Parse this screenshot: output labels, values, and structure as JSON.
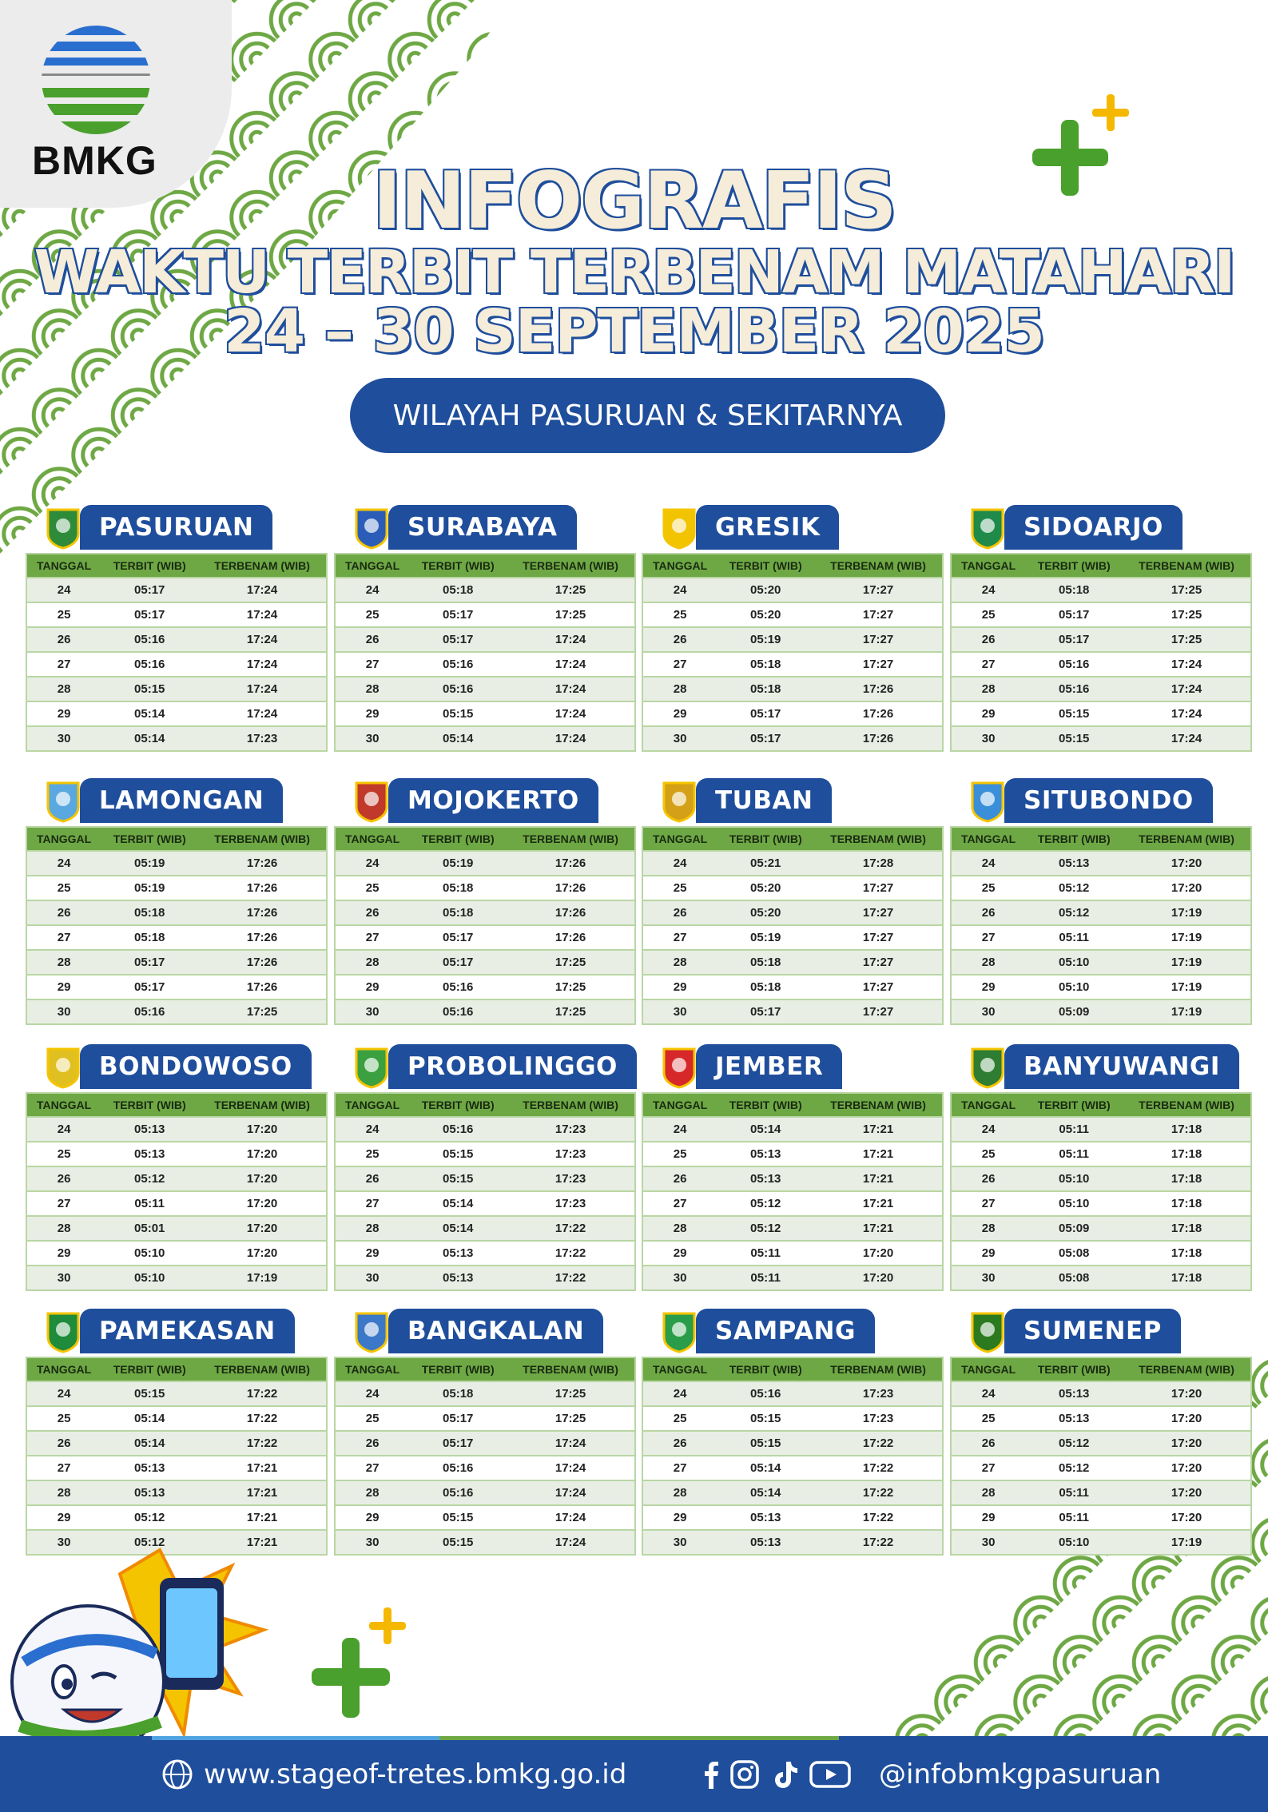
{
  "brand": {
    "logo_text": "BMKG"
  },
  "header": {
    "title_line1": "INFOGRAFIS",
    "title_line2": "WAKTU TERBIT TERBENAM MATAHARI",
    "title_line3": "24 – 30 SEPTEMBER 2025",
    "region_pill": "WILAYAH PASURUAN & SEKITARNYA"
  },
  "colors": {
    "primary_blue": "#1f4e9c",
    "green": "#6ea844",
    "accent_yellow": "#f5b800",
    "title_fill": "#f5edd9"
  },
  "table_headers": [
    "TANGGAL",
    "TERBIT (WIB)",
    "TERBENAM (WIB)"
  ],
  "dates": [
    "24",
    "25",
    "26",
    "27",
    "28",
    "29",
    "30"
  ],
  "regions": [
    {
      "name": "PASURUAN",
      "sunrise": [
        "05:17",
        "05:17",
        "05:16",
        "05:16",
        "05:15",
        "05:14",
        "05:14"
      ],
      "sunset": [
        "17:24",
        "17:24",
        "17:24",
        "17:24",
        "17:24",
        "17:24",
        "17:23"
      ]
    },
    {
      "name": "SURABAYA",
      "sunrise": [
        "05:18",
        "05:17",
        "05:17",
        "05:16",
        "05:16",
        "05:15",
        "05:14"
      ],
      "sunset": [
        "17:25",
        "17:25",
        "17:24",
        "17:24",
        "17:24",
        "17:24",
        "17:24"
      ]
    },
    {
      "name": "GRESIK",
      "sunrise": [
        "05:20",
        "05:20",
        "05:19",
        "05:18",
        "05:18",
        "05:17",
        "05:17"
      ],
      "sunset": [
        "17:27",
        "17:27",
        "17:27",
        "17:27",
        "17:26",
        "17:26",
        "17:26"
      ]
    },
    {
      "name": "SIDOARJO",
      "sunrise": [
        "05:18",
        "05:17",
        "05:17",
        "05:16",
        "05:16",
        "05:15",
        "05:15"
      ],
      "sunset": [
        "17:25",
        "17:25",
        "17:25",
        "17:24",
        "17:24",
        "17:24",
        "17:24"
      ]
    },
    {
      "name": "LAMONGAN",
      "sunrise": [
        "05:19",
        "05:19",
        "05:18",
        "05:18",
        "05:17",
        "05:17",
        "05:16"
      ],
      "sunset": [
        "17:26",
        "17:26",
        "17:26",
        "17:26",
        "17:26",
        "17:26",
        "17:25"
      ]
    },
    {
      "name": "MOJOKERTO",
      "sunrise": [
        "05:19",
        "05:18",
        "05:18",
        "05:17",
        "05:17",
        "05:16",
        "05:16"
      ],
      "sunset": [
        "17:26",
        "17:26",
        "17:26",
        "17:26",
        "17:25",
        "17:25",
        "17:25"
      ]
    },
    {
      "name": "TUBAN",
      "sunrise": [
        "05:21",
        "05:20",
        "05:20",
        "05:19",
        "05:18",
        "05:18",
        "05:17"
      ],
      "sunset": [
        "17:28",
        "17:27",
        "17:27",
        "17:27",
        "17:27",
        "17:27",
        "17:27"
      ]
    },
    {
      "name": "SITUBONDO",
      "sunrise": [
        "05:13",
        "05:12",
        "05:12",
        "05:11",
        "05:10",
        "05:10",
        "05:09"
      ],
      "sunset": [
        "17:20",
        "17:20",
        "17:19",
        "17:19",
        "17:19",
        "17:19",
        "17:19"
      ]
    },
    {
      "name": "BONDOWOSO",
      "sunrise": [
        "05:13",
        "05:13",
        "05:12",
        "05:11",
        "05:01",
        "05:10",
        "05:10"
      ],
      "sunset": [
        "17:20",
        "17:20",
        "17:20",
        "17:20",
        "17:20",
        "17:20",
        "17:19"
      ]
    },
    {
      "name": "PROBOLINGGO",
      "sunrise": [
        "05:16",
        "05:15",
        "05:15",
        "05:14",
        "05:14",
        "05:13",
        "05:13"
      ],
      "sunset": [
        "17:23",
        "17:23",
        "17:23",
        "17:23",
        "17:22",
        "17:22",
        "17:22"
      ]
    },
    {
      "name": "JEMBER",
      "sunrise": [
        "05:14",
        "05:13",
        "05:13",
        "05:12",
        "05:12",
        "05:11",
        "05:11"
      ],
      "sunset": [
        "17:21",
        "17:21",
        "17:21",
        "17:21",
        "17:21",
        "17:20",
        "17:20"
      ]
    },
    {
      "name": "BANYUWANGI",
      "sunrise": [
        "05:11",
        "05:11",
        "05:10",
        "05:10",
        "05:09",
        "05:08",
        "05:08"
      ],
      "sunset": [
        "17:18",
        "17:18",
        "17:18",
        "17:18",
        "17:18",
        "17:18",
        "17:18"
      ]
    },
    {
      "name": "PAMEKASAN",
      "sunrise": [
        "05:15",
        "05:14",
        "05:14",
        "05:13",
        "05:13",
        "05:12",
        "05:12"
      ],
      "sunset": [
        "17:22",
        "17:22",
        "17:22",
        "17:21",
        "17:21",
        "17:21",
        "17:21"
      ]
    },
    {
      "name": "BANGKALAN",
      "sunrise": [
        "05:18",
        "05:17",
        "05:17",
        "05:16",
        "05:16",
        "05:15",
        "05:15"
      ],
      "sunset": [
        "17:25",
        "17:25",
        "17:24",
        "17:24",
        "17:24",
        "17:24",
        "17:24"
      ]
    },
    {
      "name": "SAMPANG",
      "sunrise": [
        "05:16",
        "05:15",
        "05:15",
        "05:14",
        "05:14",
        "05:13",
        "05:13"
      ],
      "sunset": [
        "17:23",
        "17:23",
        "17:22",
        "17:22",
        "17:22",
        "17:22",
        "17:22"
      ]
    },
    {
      "name": "SUMENEP",
      "sunrise": [
        "05:13",
        "05:13",
        "05:12",
        "05:12",
        "05:11",
        "05:11",
        "05:10"
      ],
      "sunset": [
        "17:20",
        "17:20",
        "17:20",
        "17:20",
        "17:20",
        "17:20",
        "17:19"
      ]
    }
  ],
  "footer": {
    "website": "www.stageof-tretes.bmkg.go.id",
    "social_icons": [
      "facebook-icon",
      "instagram-icon",
      "tiktok-icon",
      "youtube-icon"
    ],
    "handle": "@infobmkgpasuruan"
  }
}
